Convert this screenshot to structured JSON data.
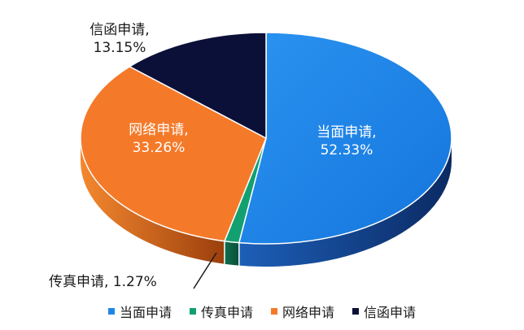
{
  "chart_data": {
    "type": "pie",
    "categories": [
      "当面申请",
      "传真申请",
      "网络申请",
      "信函申请"
    ],
    "values": [
      52.33,
      1.27,
      33.26,
      13.15
    ],
    "colors": [
      "#1f86e8",
      "#13a070",
      "#f47a2a",
      "#0b1038"
    ],
    "data_labels": [
      "当面申请,\n52.33%",
      "传真申请, 1.27%",
      "网络申请,\n33.26%",
      "信函申请,\n13.15%"
    ],
    "legend": [
      "当面申请",
      "传真申请",
      "网络申请",
      "信函申请"
    ],
    "legend_position": "bottom",
    "title": ""
  }
}
